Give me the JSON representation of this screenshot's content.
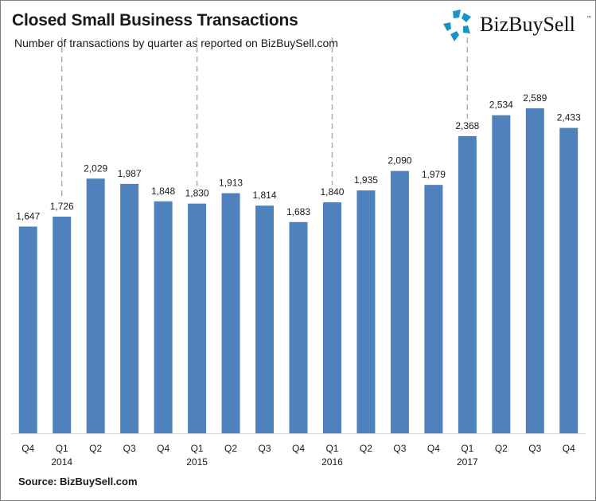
{
  "header": {
    "title": "Closed Small Business Transactions",
    "subtitle": "Number of transactions by quarter as reported  on  BizBuySell.com",
    "logo_text": "BizBuySell",
    "logo_tm": "™"
  },
  "footer": {
    "source": "Source: BizBuySell.com"
  },
  "colors": {
    "bar": "#4f81bd",
    "divider": "#9ab3d5",
    "logo_blue": "#1a93c9"
  },
  "chart_data": {
    "type": "bar",
    "title": "Closed Small Business Transactions",
    "subtitle": "Number of transactions by quarter as reported on BizBuySell.com",
    "xlabel": "",
    "ylabel": "",
    "ylim": [
      0,
      2800
    ],
    "grid": false,
    "legend": "none",
    "categories": [
      "Q4",
      "Q1",
      "Q2",
      "Q3",
      "Q4",
      "Q1",
      "Q2",
      "Q3",
      "Q4",
      "Q1",
      "Q2",
      "Q3",
      "Q4",
      "Q1",
      "Q2",
      "Q3",
      "Q4"
    ],
    "year_labels": [
      "",
      "2014",
      "",
      "",
      "",
      "2015",
      "",
      "",
      "",
      "2016",
      "",
      "",
      "",
      "2017",
      "",
      "",
      ""
    ],
    "values": [
      1647,
      1726,
      2029,
      1987,
      1848,
      1830,
      1913,
      1814,
      1683,
      1840,
      1935,
      2090,
      1979,
      2368,
      2534,
      2589,
      2433
    ],
    "data_labels": [
      "1,647",
      "1,726",
      "2,029",
      "1,987",
      "1,848",
      "1,830",
      "1,913",
      "1,814",
      "1,683",
      "1,840",
      "1,935",
      "2,090",
      "1,979",
      "2,368",
      "2,534",
      "2,589",
      "2,433"
    ],
    "year_divider_indices": [
      1,
      5,
      9,
      13
    ]
  }
}
